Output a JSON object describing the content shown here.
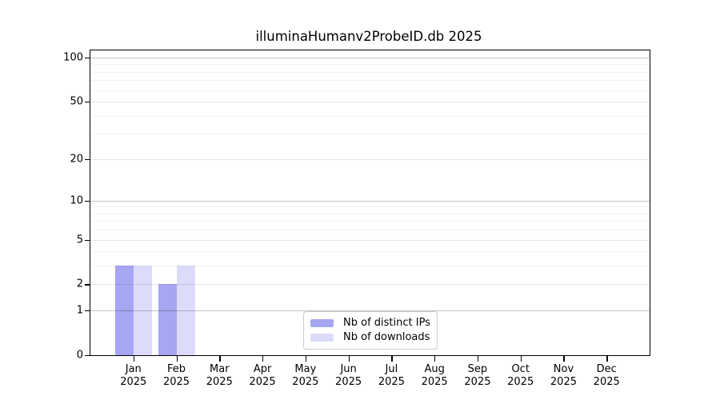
{
  "title": "illuminaHumanv2ProbeID.db 2025",
  "colors": {
    "bar_distinct_ips": "#a6a6f2",
    "bar_downloads": "#dcdcfa",
    "axis_frame": "#000000",
    "grid_decade": "rgba(0,0,0,0.24)",
    "grid_labeled": "rgba(0,0,0,0.10)",
    "grid_minor": "rgba(0,0,0,0.055)",
    "legend_border": "#cccccc"
  },
  "chart_data": {
    "type": "bar",
    "title": "illuminaHumanv2ProbeID.db 2025",
    "categories": [
      "Jan",
      "Feb",
      "Mar",
      "Apr",
      "May",
      "Jun",
      "Jul",
      "Aug",
      "Sep",
      "Oct",
      "Nov",
      "Dec"
    ],
    "x_year_label": "2025",
    "series": [
      {
        "name": "Nb of distinct IPs",
        "color": "#a6a6f2",
        "values": [
          3,
          2,
          0,
          0,
          0,
          0,
          0,
          0,
          0,
          0,
          0,
          0
        ]
      },
      {
        "name": "Nb of downloads",
        "color": "#dcdcfa",
        "values": [
          3,
          3,
          0,
          0,
          0,
          0,
          0,
          0,
          0,
          0,
          0,
          0
        ]
      }
    ],
    "yscale": "log1p",
    "ylim": [
      0,
      112
    ],
    "y_tick_values": [
      0,
      1,
      2,
      5,
      10,
      20,
      50,
      100
    ],
    "y_tick_labels": [
      "0",
      "1",
      "2",
      "5",
      "10",
      "20",
      "50",
      "100"
    ],
    "y_decade_gridlines": [
      1,
      10,
      100
    ],
    "y_minor_gridlines": [
      3,
      4,
      6,
      7,
      8,
      9,
      30,
      40,
      60,
      70,
      80,
      90
    ],
    "grid": true,
    "legend_position": "bottom-center",
    "legend_labels": [
      "Nb of distinct IPs",
      "Nb of downloads"
    ]
  }
}
